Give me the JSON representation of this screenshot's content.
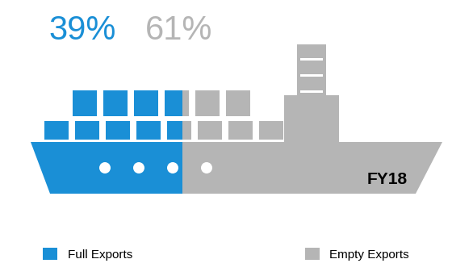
{
  "chart_data": {
    "type": "bar",
    "orientation": "horizontal",
    "stacked": true,
    "title": "FY18",
    "tick_labels": false,
    "data_labels": true,
    "legend": "lower center",
    "series": [
      {
        "name": "Full Exports",
        "color": "#1a8fd6",
        "values": [
          39
        ],
        "value_labels": [
          "39%"
        ]
      },
      {
        "name": "Empty Exports",
        "color": "#b5b5b5",
        "values": [
          61
        ],
        "value_labels": [
          "61%"
        ]
      }
    ]
  }
}
